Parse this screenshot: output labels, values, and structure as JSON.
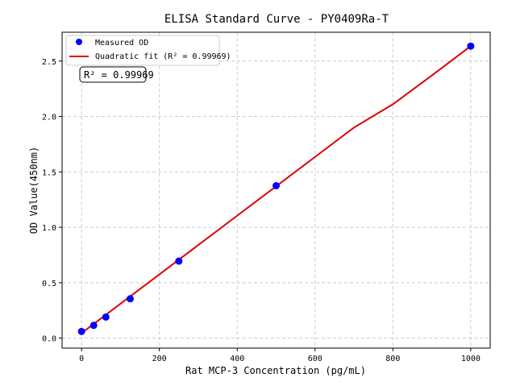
{
  "chart_data": {
    "type": "scatter",
    "title": "ELISA Standard Curve - PY0409Ra-T",
    "xlabel": "Rat MCP-3 Concentration (pg/mL)",
    "ylabel": "OD Value(450nm)",
    "xlim": [
      -50,
      1050
    ],
    "ylim": [
      -0.09,
      2.76
    ],
    "xticks": [
      0,
      200,
      400,
      600,
      800,
      1000
    ],
    "yticks": [
      0.0,
      0.5,
      1.0,
      1.5,
      2.0,
      2.5
    ],
    "grid": true,
    "legend_placement": "top-left",
    "series": [
      {
        "name": "Measured OD",
        "kind": "scatter",
        "color": "#0000ff",
        "x": [
          0,
          31.25,
          62.5,
          125,
          250,
          500,
          1000
        ],
        "y": [
          0.06,
          0.115,
          0.19,
          0.355,
          0.695,
          1.375,
          2.635
        ]
      },
      {
        "name": "Quadratic fit (R² = 0.99969)",
        "kind": "line",
        "color": "#dd0000",
        "x": [
          0,
          100,
          200,
          300,
          400,
          500,
          600,
          700,
          800,
          900,
          1000
        ],
        "y": [
          0.045,
          0.31,
          0.575,
          0.84,
          1.105,
          1.37,
          1.635,
          1.9,
          2.11,
          2.37,
          2.635
        ]
      }
    ],
    "annotation": "R² = 0.99969"
  }
}
